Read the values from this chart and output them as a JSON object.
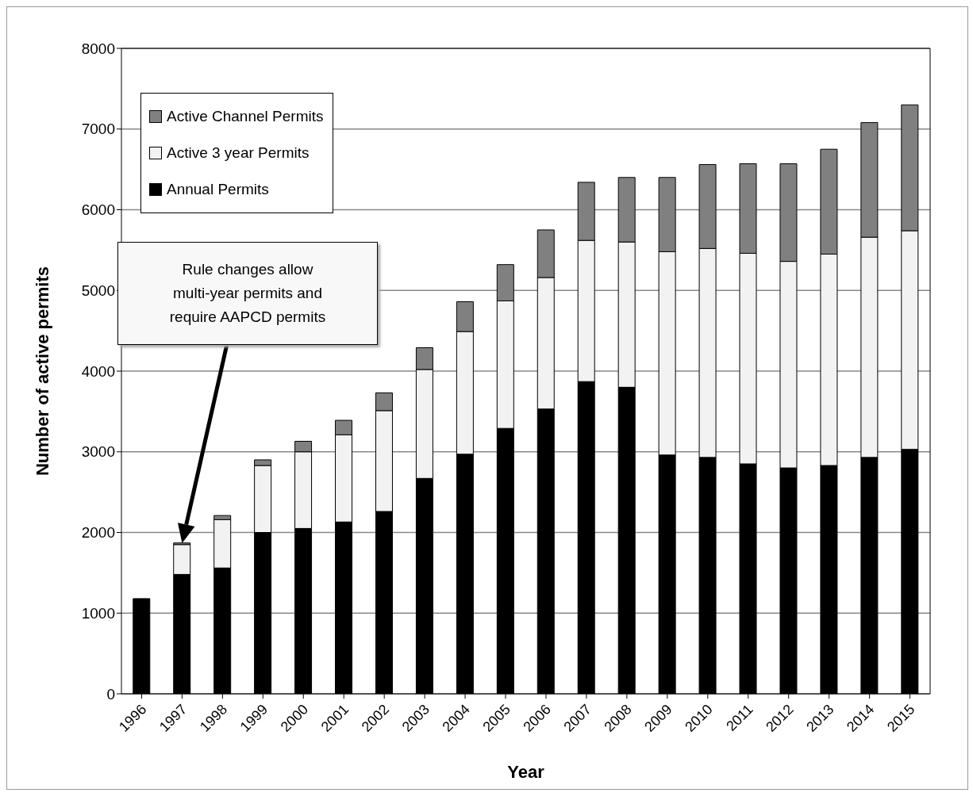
{
  "chart_data": {
    "type": "bar",
    "stacked": true,
    "xlabel": "Year",
    "ylabel": "Number of active permits",
    "categories": [
      "1996",
      "1997",
      "1998",
      "1999",
      "2000",
      "2001",
      "2002",
      "2003",
      "2004",
      "2005",
      "2006",
      "2007",
      "2008",
      "2009",
      "2010",
      "2011",
      "2012",
      "2013",
      "2014",
      "2015"
    ],
    "series": [
      {
        "name": "Annual Permits",
        "color": "#000000",
        "values": [
          1180,
          1480,
          1560,
          2000,
          2050,
          2130,
          2260,
          2670,
          2970,
          3290,
          3530,
          3870,
          3800,
          2960,
          2930,
          2850,
          2800,
          2830,
          2930,
          3030
        ]
      },
      {
        "name": "Active 3 year Permits",
        "color": "#f2f2f2",
        "values": [
          0,
          370,
          600,
          830,
          950,
          1080,
          1250,
          1350,
          1520,
          1580,
          1630,
          1750,
          1800,
          2520,
          2590,
          2610,
          2560,
          2620,
          2730,
          2710
        ]
      },
      {
        "name": "Active Channel Permits",
        "color": "#808080",
        "values": [
          0,
          20,
          50,
          70,
          130,
          180,
          220,
          270,
          370,
          450,
          590,
          720,
          800,
          920,
          1040,
          1110,
          1210,
          1300,
          1420,
          1560
        ]
      }
    ],
    "ylim": [
      0,
      8000
    ],
    "yticks": [
      0,
      1000,
      2000,
      3000,
      4000,
      5000,
      6000,
      7000,
      8000
    ],
    "grid": "y",
    "legend": "top left",
    "annotations": [
      "Rule changes allow multi-year permits and require AAPCD permits"
    ]
  }
}
